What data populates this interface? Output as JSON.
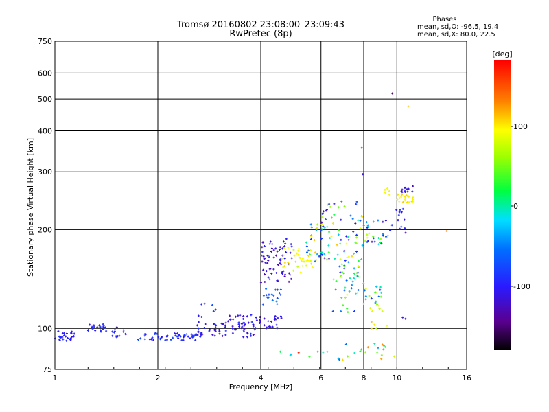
{
  "chart_data": {
    "type": "scatter",
    "title": "Tromsø 20160802 23:08:00–23:09:43",
    "subtitle": "RwPretec (8p)",
    "xlabel": "Frequency [MHz]",
    "ylabel": "Stationary phase Virtual Height [km]",
    "x_scale": "log2",
    "y_scale": "log",
    "xlim": [
      1,
      16
    ],
    "ylim": [
      75,
      750
    ],
    "x_ticks": [
      "1",
      "2",
      "4",
      "6",
      "8",
      "10",
      "16"
    ],
    "y_ticks": [
      "75",
      "100",
      "200",
      "300",
      "400",
      "500",
      "600",
      "750"
    ],
    "grid": true,
    "stats_header": "Phases",
    "stats_lines": [
      "mean, sd,O: -96.5, 19.4",
      "mean, sd,X:  80.0, 22.5"
    ],
    "colorbar": {
      "label": "[deg]",
      "range": [
        -180,
        180
      ],
      "ticks": [
        "100",
        "0",
        "-100"
      ],
      "colormap": "rainbow (black-purple-blue-cyan-green-yellow-orange-red)"
    },
    "clusters": [
      {
        "x": [
          1.0,
          1.14
        ],
        "y": [
          91,
          99
        ],
        "n": 26,
        "phase": [
          -115,
          -85
        ]
      },
      {
        "x": [
          1.25,
          1.42
        ],
        "y": [
          97,
          103
        ],
        "n": 22,
        "phase": [
          -110,
          -80
        ]
      },
      {
        "x": [
          1.45,
          1.65
        ],
        "y": [
          94,
          101
        ],
        "n": 14,
        "phase": [
          -120,
          -90
        ]
      },
      {
        "x": [
          1.75,
          2.6
        ],
        "y": [
          92,
          97
        ],
        "n": 55,
        "phase": [
          -110,
          -75
        ]
      },
      {
        "x": [
          2.6,
          3.9
        ],
        "y": [
          94,
          105
        ],
        "n": 60,
        "phase": [
          -125,
          -85
        ]
      },
      {
        "x": [
          3.1,
          4.6
        ],
        "y": [
          100,
          110
        ],
        "n": 45,
        "phase": [
          -130,
          -95
        ]
      },
      {
        "x": [
          2.6,
          3.0
        ],
        "y": [
          108,
          125
        ],
        "n": 7,
        "phase": [
          -110,
          -70
        ]
      },
      {
        "x": [
          4.0,
          5.0
        ],
        "y": [
          138,
          190
        ],
        "n": 70,
        "phase": [
          -135,
          -95
        ]
      },
      {
        "x": [
          4.0,
          4.6
        ],
        "y": [
          118,
          132
        ],
        "n": 18,
        "phase": [
          -80,
          -50
        ]
      },
      {
        "x": [
          4.6,
          5.7
        ],
        "y": [
          148,
          178
        ],
        "n": 35,
        "phase": [
          70,
          110
        ]
      },
      {
        "x": [
          5.4,
          6.2
        ],
        "y": [
          148,
          210
        ],
        "n": 30,
        "phase": [
          -100,
          120
        ]
      },
      {
        "x": [
          6.0,
          8.0
        ],
        "y": [
          160,
          245
        ],
        "n": 70,
        "phase": [
          -130,
          110
        ]
      },
      {
        "x": [
          6.5,
          8.0
        ],
        "y": [
          112,
          160
        ],
        "n": 45,
        "phase": [
          -110,
          90
        ]
      },
      {
        "x": [
          8.0,
          9.5
        ],
        "y": [
          180,
          215
        ],
        "n": 30,
        "phase": [
          -125,
          100
        ]
      },
      {
        "x": [
          8.0,
          9.0
        ],
        "y": [
          118,
          135
        ],
        "n": 18,
        "phase": [
          -90,
          90
        ]
      },
      {
        "x": [
          8.3,
          9.6
        ],
        "y": [
          100,
          118
        ],
        "n": 10,
        "phase": [
          60,
          110
        ]
      },
      {
        "x": [
          9.0,
          9.6
        ],
        "y": [
          255,
          268
        ],
        "n": 6,
        "phase": [
          85,
          105
        ]
      },
      {
        "x": [
          10.0,
          11.2
        ],
        "y": [
          242,
          256
        ],
        "n": 25,
        "phase": [
          85,
          110
        ]
      },
      {
        "x": [
          10.3,
          11.2
        ],
        "y": [
          258,
          272
        ],
        "n": 12,
        "phase": [
          -125,
          -95
        ]
      },
      {
        "x": [
          9.5,
          10.8
        ],
        "y": [
          195,
          232
        ],
        "n": 15,
        "phase": [
          -125,
          -85
        ]
      },
      {
        "x": [
          4.5,
          10.0
        ],
        "y": [
          80,
          90
        ],
        "n": 28,
        "phase": [
          -60,
          170
        ]
      }
    ],
    "extra_points": [
      {
        "x": 9.7,
        "y": 520,
        "phase": -150
      },
      {
        "x": 10.8,
        "y": 475,
        "phase": 110
      },
      {
        "x": 7.9,
        "y": 355,
        "phase": -140
      },
      {
        "x": 7.95,
        "y": 295,
        "phase": -120
      },
      {
        "x": 14.0,
        "y": 198,
        "phase": 130
      },
      {
        "x": 10.4,
        "y": 108,
        "phase": -110
      },
      {
        "x": 10.6,
        "y": 107,
        "phase": -115
      }
    ]
  }
}
